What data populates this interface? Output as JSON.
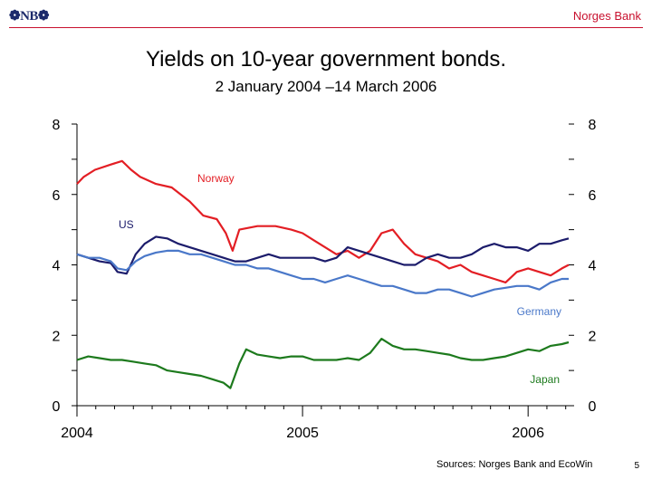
{
  "header": {
    "logo_text": "NB",
    "bank_name": "Norges Bank"
  },
  "footer": {
    "source": "Sources: Norges Bank and EcoWin",
    "page_number": "5"
  },
  "colors": {
    "norway": "#e31e24",
    "us": "#1c1c6b",
    "germany": "#4a78c9",
    "japan": "#1d7a1d",
    "brand_red": "#c8102e"
  },
  "chart_data": {
    "type": "line",
    "title": "Yields on 10-year government bonds.",
    "subtitle": "2 January 2004 –14 March 2006",
    "xlabel": "",
    "ylabel": "",
    "xlim": [
      2004.0,
      2006.2
    ],
    "x_ticks": [
      2004,
      2005,
      2006
    ],
    "x_tick_labels": [
      "2004",
      "2005",
      "2006"
    ],
    "ylim": [
      0,
      8
    ],
    "y_ticks": [
      0,
      2,
      4,
      6,
      8
    ],
    "y_tick_labels": [
      "0",
      "2",
      "4",
      "6",
      "8"
    ],
    "grid": false,
    "legend": "inline labels",
    "series": [
      {
        "name": "Norway",
        "x": [
          2004.0,
          2004.03,
          2004.08,
          2004.15,
          2004.2,
          2004.24,
          2004.28,
          2004.35,
          2004.42,
          2004.5,
          2004.56,
          2004.62,
          2004.66,
          2004.69,
          2004.72,
          2004.8,
          2004.88,
          2004.95,
          2005.0,
          2005.05,
          2005.1,
          2005.15,
          2005.2,
          2005.25,
          2005.3,
          2005.35,
          2005.4,
          2005.45,
          2005.5,
          2005.55,
          2005.6,
          2005.65,
          2005.7,
          2005.75,
          2005.8,
          2005.85,
          2005.9,
          2005.95,
          2006.0,
          2006.05,
          2006.1,
          2006.15,
          2006.18
        ],
        "y": [
          6.3,
          6.5,
          6.7,
          6.85,
          6.95,
          6.7,
          6.5,
          6.3,
          6.2,
          5.8,
          5.4,
          5.3,
          4.9,
          4.4,
          5.0,
          5.1,
          5.1,
          5.0,
          4.9,
          4.7,
          4.5,
          4.3,
          4.4,
          4.2,
          4.4,
          4.9,
          5.0,
          4.6,
          4.3,
          4.2,
          4.1,
          3.9,
          4.0,
          3.8,
          3.7,
          3.6,
          3.5,
          3.8,
          3.9,
          3.8,
          3.7,
          3.9,
          4.0
        ]
      },
      {
        "name": "US",
        "x": [
          2004.0,
          2004.05,
          2004.1,
          2004.15,
          2004.18,
          2004.22,
          2004.26,
          2004.3,
          2004.35,
          2004.4,
          2004.45,
          2004.5,
          2004.55,
          2004.6,
          2004.65,
          2004.7,
          2004.75,
          2004.8,
          2004.85,
          2004.9,
          2004.95,
          2005.0,
          2005.05,
          2005.1,
          2005.15,
          2005.2,
          2005.25,
          2005.3,
          2005.35,
          2005.4,
          2005.45,
          2005.5,
          2005.55,
          2005.6,
          2005.65,
          2005.7,
          2005.75,
          2005.8,
          2005.85,
          2005.9,
          2005.95,
          2006.0,
          2006.05,
          2006.1,
          2006.15,
          2006.18
        ],
        "y": [
          4.3,
          4.2,
          4.1,
          4.05,
          3.8,
          3.75,
          4.3,
          4.6,
          4.8,
          4.75,
          4.6,
          4.5,
          4.4,
          4.3,
          4.2,
          4.1,
          4.1,
          4.2,
          4.3,
          4.2,
          4.2,
          4.2,
          4.2,
          4.1,
          4.2,
          4.5,
          4.4,
          4.3,
          4.2,
          4.1,
          4.0,
          4.0,
          4.2,
          4.3,
          4.2,
          4.2,
          4.3,
          4.5,
          4.6,
          4.5,
          4.5,
          4.4,
          4.6,
          4.6,
          4.7,
          4.75
        ]
      },
      {
        "name": "Germany",
        "x": [
          2004.0,
          2004.05,
          2004.1,
          2004.15,
          2004.18,
          2004.22,
          2004.26,
          2004.3,
          2004.35,
          2004.4,
          2004.45,
          2004.5,
          2004.55,
          2004.6,
          2004.65,
          2004.7,
          2004.75,
          2004.8,
          2004.85,
          2004.9,
          2004.95,
          2005.0,
          2005.05,
          2005.1,
          2005.15,
          2005.2,
          2005.25,
          2005.3,
          2005.35,
          2005.4,
          2005.45,
          2005.5,
          2005.55,
          2005.6,
          2005.65,
          2005.7,
          2005.75,
          2005.8,
          2005.85,
          2005.9,
          2005.95,
          2006.0,
          2006.05,
          2006.1,
          2006.15,
          2006.18
        ],
        "y": [
          4.3,
          4.2,
          4.2,
          4.1,
          3.9,
          3.85,
          4.1,
          4.25,
          4.35,
          4.4,
          4.4,
          4.3,
          4.3,
          4.2,
          4.1,
          4.0,
          4.0,
          3.9,
          3.9,
          3.8,
          3.7,
          3.6,
          3.6,
          3.5,
          3.6,
          3.7,
          3.6,
          3.5,
          3.4,
          3.4,
          3.3,
          3.2,
          3.2,
          3.3,
          3.3,
          3.2,
          3.1,
          3.2,
          3.3,
          3.35,
          3.4,
          3.4,
          3.3,
          3.5,
          3.6,
          3.6
        ]
      },
      {
        "name": "Japan",
        "x": [
          2004.0,
          2004.05,
          2004.1,
          2004.15,
          2004.2,
          2004.25,
          2004.3,
          2004.35,
          2004.4,
          2004.45,
          2004.5,
          2004.55,
          2004.6,
          2004.65,
          2004.68,
          2004.72,
          2004.75,
          2004.8,
          2004.85,
          2004.9,
          2004.95,
          2005.0,
          2005.05,
          2005.1,
          2005.15,
          2005.2,
          2005.25,
          2005.3,
          2005.35,
          2005.4,
          2005.45,
          2005.5,
          2005.55,
          2005.6,
          2005.65,
          2005.7,
          2005.75,
          2005.8,
          2005.85,
          2005.9,
          2005.95,
          2006.0,
          2006.05,
          2006.1,
          2006.15,
          2006.18
        ],
        "y": [
          1.3,
          1.4,
          1.35,
          1.3,
          1.3,
          1.25,
          1.2,
          1.15,
          1.0,
          0.95,
          0.9,
          0.85,
          0.75,
          0.65,
          0.5,
          1.2,
          1.6,
          1.45,
          1.4,
          1.35,
          1.4,
          1.4,
          1.3,
          1.3,
          1.3,
          1.35,
          1.3,
          1.5,
          1.9,
          1.7,
          1.6,
          1.6,
          1.55,
          1.5,
          1.45,
          1.35,
          1.3,
          1.3,
          1.35,
          1.4,
          1.5,
          1.6,
          1.55,
          1.7,
          1.75,
          1.8
        ]
      }
    ]
  }
}
